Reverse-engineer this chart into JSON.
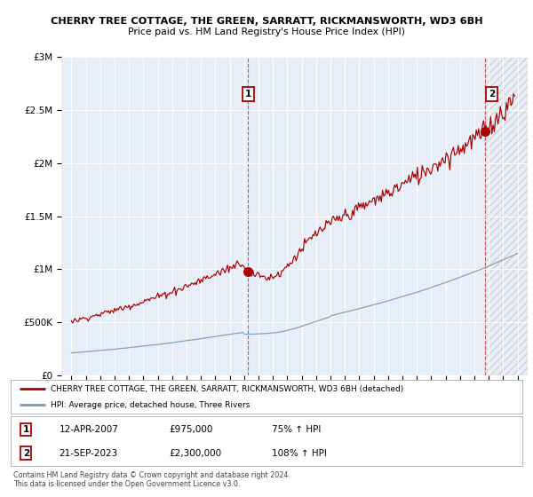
{
  "title1": "CHERRY TREE COTTAGE, THE GREEN, SARRATT, RICKMANSWORTH, WD3 6BH",
  "title2": "Price paid vs. HM Land Registry's House Price Index (HPI)",
  "legend_line1": "CHERRY TREE COTTAGE, THE GREEN, SARRATT, RICKMANSWORTH, WD3 6BH (detached)",
  "legend_line2": "HPI: Average price, detached house, Three Rivers",
  "sale1_date": "12-APR-2007",
  "sale1_price": "£975,000",
  "sale1_hpi": "75% ↑ HPI",
  "sale1_year": 2007.28,
  "sale1_value": 975000,
  "sale2_date": "21-SEP-2023",
  "sale2_price": "£2,300,000",
  "sale2_hpi": "108% ↑ HPI",
  "sale2_year": 2023.72,
  "sale2_value": 2300000,
  "ylim_max": 3000000,
  "xlim_min": 1994.3,
  "xlim_max": 2026.7,
  "footer": "Contains HM Land Registry data © Crown copyright and database right 2024.\nThis data is licensed under the Open Government Licence v3.0.",
  "red_color": "#aa0000",
  "blue_color": "#7799bb",
  "background_color": "#e8eef8",
  "grid_color": "#ffffff",
  "vline_color": "#cc3333"
}
